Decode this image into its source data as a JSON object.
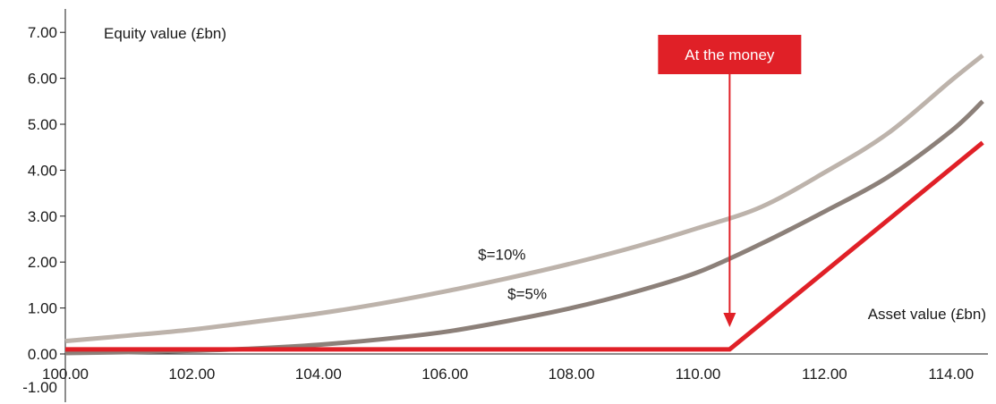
{
  "chart_data": {
    "type": "line",
    "ylabel": "Equity value (£bn)",
    "xlabel": "Asset value (£bn)",
    "xlim": [
      100,
      114.5
    ],
    "ylim": [
      -1,
      7.5
    ],
    "x_ticks": [
      100,
      102,
      104,
      106,
      108,
      110,
      112,
      114
    ],
    "x_tick_labels": [
      "100.00",
      "102.00",
      "104.00",
      "106.00",
      "108.00",
      "110.00",
      "112.00",
      "114.00"
    ],
    "y_ticks": [
      0,
      1,
      2,
      3,
      4,
      5,
      6,
      7
    ],
    "y_tick_labels": [
      "0.00",
      "1.00",
      "2.00",
      "3.00",
      "4.00",
      "5.00",
      "6.00",
      "7.00"
    ],
    "y_extra_label": "-1.00",
    "grid": false,
    "series": [
      {
        "name": "$=10%",
        "color": "#bdb3ab",
        "x": [
          100,
          101,
          102,
          103,
          104,
          105,
          106,
          107,
          108,
          109,
          110,
          111,
          112,
          113,
          114,
          114.5
        ],
        "y": [
          0.28,
          0.4,
          0.53,
          0.7,
          0.88,
          1.1,
          1.36,
          1.65,
          1.97,
          2.33,
          2.74,
          3.2,
          3.95,
          4.8,
          5.95,
          6.5
        ]
      },
      {
        "name": "$=5%",
        "color": "#8c8079",
        "x": [
          100,
          101,
          102,
          103,
          104,
          105,
          106,
          107,
          108,
          109,
          110,
          111,
          112,
          113,
          114,
          114.5
        ],
        "y": [
          0.02,
          0.04,
          0.07,
          0.12,
          0.2,
          0.32,
          0.48,
          0.72,
          1.0,
          1.35,
          1.78,
          2.4,
          3.1,
          3.85,
          4.85,
          5.5
        ]
      },
      {
        "name": "",
        "color": "#e02027",
        "x": [
          100,
          110.5,
          114.5
        ],
        "y": [
          0.1,
          0.1,
          4.6
        ]
      }
    ],
    "series_label_positions": [
      {
        "x": 106.9,
        "y": 2.05
      },
      {
        "x": 107.3,
        "y": 1.2
      }
    ],
    "annotation": {
      "text": "At the money",
      "x": 110.5,
      "color": "#e02027"
    }
  }
}
